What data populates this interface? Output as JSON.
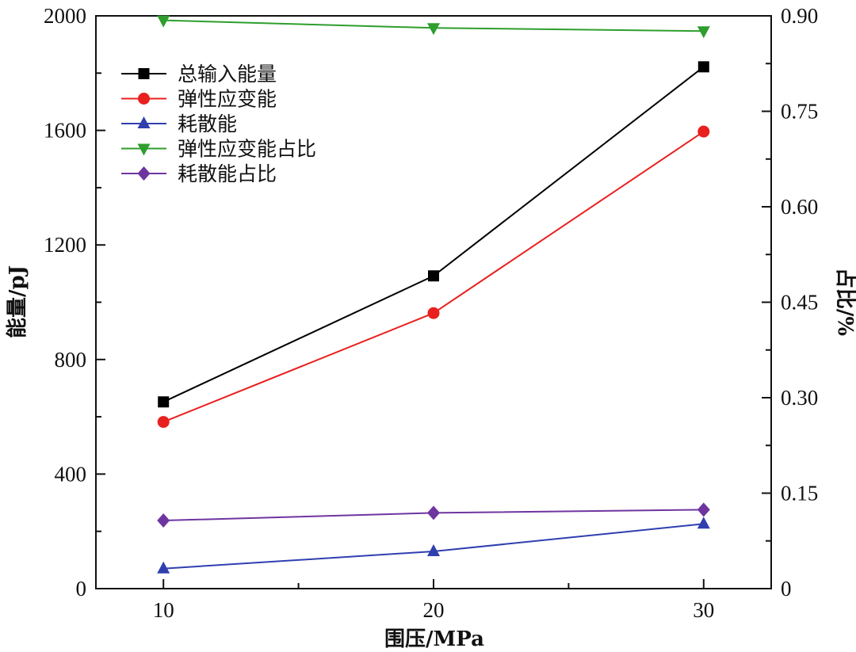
{
  "chart_data": {
    "type": "line",
    "x": [
      10,
      20,
      30
    ],
    "xlabel": "围压/MPa",
    "ylabel_left": "能量/pJ",
    "ylabel_right": "占比/%",
    "xlim": [
      7.5,
      32.5
    ],
    "ylim_left": [
      0,
      2000
    ],
    "ylim_right": [
      0,
      0.9
    ],
    "x_ticks": [
      "10",
      "20",
      "30"
    ],
    "y_left_ticks": [
      "0",
      "400",
      "800",
      "1200",
      "1600",
      "2000"
    ],
    "y_right_ticks": [
      "0",
      "0.15",
      "0.30",
      "0.45",
      "0.60",
      "0.75",
      "0.90"
    ],
    "legend_position": "top-left",
    "series": [
      {
        "name": "总输入能量",
        "axis": "left",
        "color": "#000000",
        "marker": "square",
        "values": [
          652,
          1092,
          1822
        ]
      },
      {
        "name": "弹性应变能",
        "axis": "left",
        "color": "#e8201e",
        "marker": "circle",
        "values": [
          582,
          962,
          1596
        ]
      },
      {
        "name": "耗散能",
        "axis": "left",
        "color": "#2f3fb0",
        "marker": "triangle-up",
        "values": [
          70,
          130,
          226
        ]
      },
      {
        "name": "弹性应变能占比",
        "axis": "right",
        "color": "#2e9e2e",
        "marker": "triangle-down",
        "values": [
          0.893,
          0.881,
          0.876
        ]
      },
      {
        "name": "耗散能占比",
        "axis": "right",
        "color": "#6e35a0",
        "marker": "diamond",
        "values": [
          0.107,
          0.119,
          0.124
        ]
      }
    ]
  }
}
